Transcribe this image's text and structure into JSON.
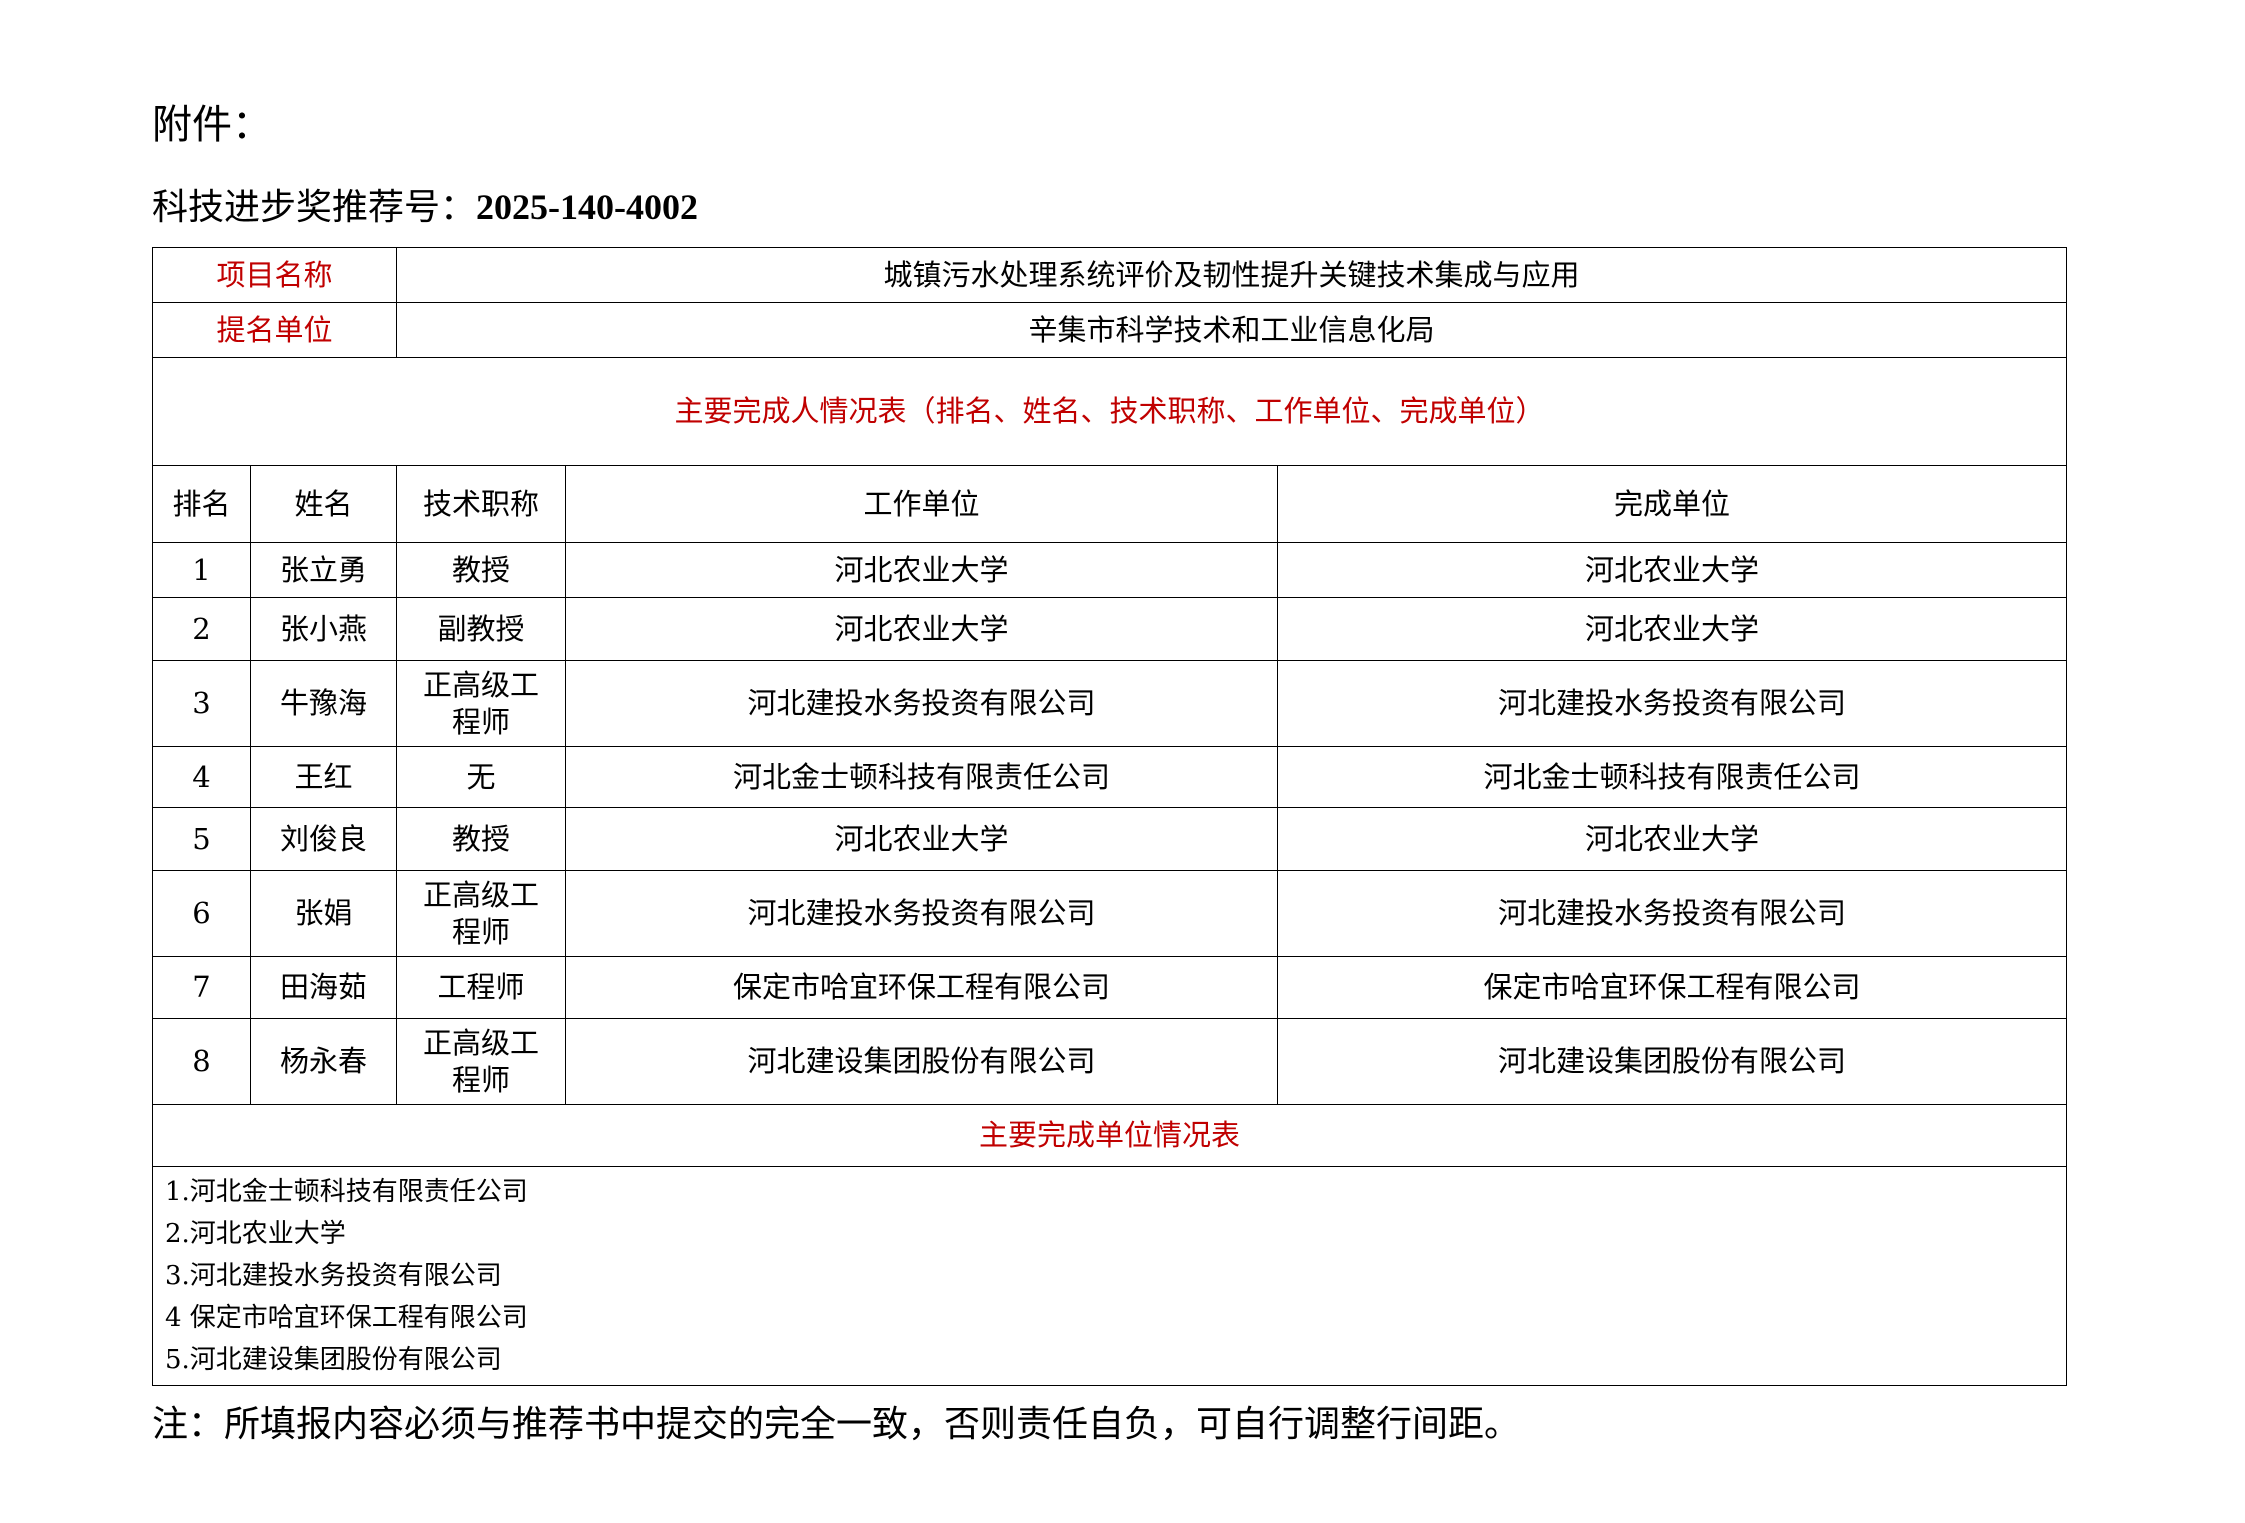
{
  "attachment_label": "附件：",
  "recommend": {
    "label": "科技进步奖推荐号：",
    "number": "2025-140-4002"
  },
  "project": {
    "label": "项目名称",
    "value": "城镇污水处理系统评价及韧性提升关键技术集成与应用"
  },
  "nominator": {
    "label": "提名单位",
    "value": "辛集市科学技术和工业信息化局"
  },
  "persons_title": "主要完成人情况表（排名、姓名、技术职称、工作单位、完成单位）",
  "headers": [
    "排名",
    "姓名",
    "技术职称",
    "工作单位",
    "完成单位"
  ],
  "rows": [
    [
      "1",
      "张立勇",
      "教授",
      "河北农业大学",
      "河北农业大学"
    ],
    [
      "2",
      "张小燕",
      "副教授",
      "河北农业大学",
      "河北农业大学"
    ],
    [
      "3",
      "牛豫海",
      "正高级工程师",
      "河北建投水务投资有限公司",
      "河北建投水务投资有限公司"
    ],
    [
      "4",
      "王红",
      "无",
      "河北金士顿科技有限责任公司",
      "河北金士顿科技有限责任公司"
    ],
    [
      "5",
      "刘俊良",
      "教授",
      "河北农业大学",
      "河北农业大学"
    ],
    [
      "6",
      "张娟",
      "正高级工程师",
      "河北建投水务投资有限公司",
      "河北建投水务投资有限公司"
    ],
    [
      "7",
      "田海茹",
      "工程师",
      "保定市哈宜环保工程有限公司",
      "保定市哈宜环保工程有限公司"
    ],
    [
      "8",
      "杨永春",
      "正高级工程师",
      "河北建设集团股份有限公司",
      "河北建设集团股份有限公司"
    ]
  ],
  "units_title": "主要完成单位情况表",
  "units": [
    "1.河北金士顿科技有限责任公司",
    "2.河北农业大学",
    "3.河北建投水务投资有限公司",
    "4 保定市哈宜环保工程有限公司",
    "5.河北建设集团股份有限公司"
  ],
  "note": "注：所填报内容必须与推荐书中提交的完全一致，否则责任自负，可自行调整行间距。",
  "colors": {
    "label_red": "#c00000"
  }
}
